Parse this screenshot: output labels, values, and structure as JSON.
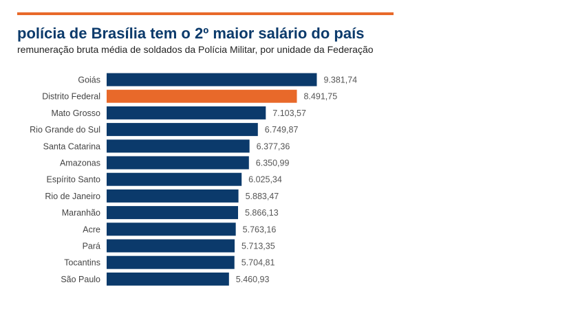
{
  "header": {
    "title": "polícia de Brasília tem o 2º maior salário do país",
    "subtitle": "remuneração bruta média de soldados da Polícia Militar, por unidade da Federação"
  },
  "colors": {
    "accent": "#e8692a",
    "bar": "#0b3a6b",
    "highlight": "#e8692a",
    "title": "#0b3a6b"
  },
  "chart_data": {
    "type": "bar",
    "orientation": "horizontal",
    "title": "polícia de Brasília tem o 2º maior salário do país",
    "subtitle": "remuneração bruta média de soldados da Polícia Militar, por unidade da Federação",
    "xlabel": "",
    "ylabel": "",
    "xlim": [
      0,
      10000
    ],
    "grid": false,
    "highlighted_category": "Distrito Federal",
    "categories": [
      "Goiás",
      "Distrito Federal",
      "Mato Grosso",
      "Rio Grande do Sul",
      "Santa Catarina",
      "Amazonas",
      "Espírito Santo",
      "Rio de Janeiro",
      "Maranhão",
      "Acre",
      "Pará",
      "Tocantins",
      "São Paulo"
    ],
    "values": [
      9381.74,
      8491.75,
      7103.57,
      6749.87,
      6377.36,
      6350.99,
      6025.34,
      5883.47,
      5866.13,
      5763.16,
      5713.35,
      5704.81,
      5460.93
    ],
    "value_labels": [
      "9.381,74",
      "8.491,75",
      "7.103,57",
      "6.749,87",
      "6.377,36",
      "6.350,99",
      "6.025,34",
      "5.883,47",
      "5.866,13",
      "5.763,16",
      "5.713,35",
      "5.704,81",
      "5.460,93"
    ]
  }
}
